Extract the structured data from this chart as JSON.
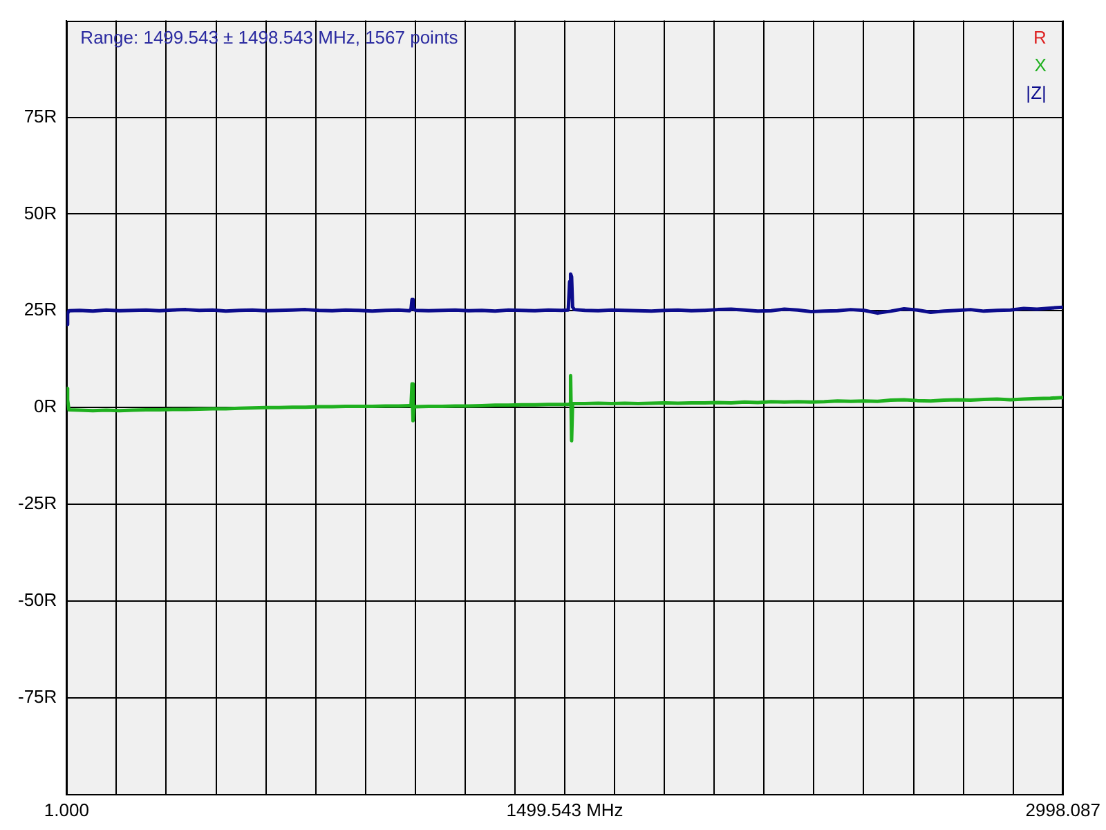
{
  "chart_data": {
    "type": "line",
    "annotations": [
      "Range: 1499.543 ± 1498.543 MHz, 1567 points"
    ],
    "x": [
      1,
      4,
      8,
      40,
      80,
      120,
      160,
      200,
      240,
      280,
      320,
      360,
      400,
      440,
      480,
      520,
      560,
      600,
      640,
      680,
      720,
      760,
      800,
      840,
      880,
      920,
      960,
      1000,
      1032,
      1037,
      1040,
      1043,
      1046,
      1052,
      1090,
      1130,
      1170,
      1210,
      1250,
      1290,
      1330,
      1370,
      1410,
      1450,
      1490,
      1510,
      1514,
      1517,
      1520,
      1523,
      1528,
      1560,
      1600,
      1640,
      1680,
      1720,
      1760,
      1800,
      1840,
      1880,
      1920,
      1960,
      2000,
      2040,
      2080,
      2120,
      2160,
      2200,
      2240,
      2280,
      2320,
      2360,
      2400,
      2440,
      2480,
      2520,
      2560,
      2600,
      2640,
      2680,
      2720,
      2760,
      2800,
      2840,
      2880,
      2920,
      2960,
      2998.087
    ],
    "series": [
      {
        "name": "R",
        "color": "#dd2222",
        "values": [
          null,
          null,
          null,
          null,
          null,
          null,
          null,
          null,
          null,
          null,
          null,
          null,
          null,
          null,
          null,
          null,
          null,
          null,
          null,
          null,
          null,
          null,
          null,
          null,
          null,
          null,
          null,
          null,
          null,
          null,
          null,
          null,
          null,
          null,
          null,
          null,
          null,
          null,
          null,
          null,
          null,
          null,
          null,
          null,
          null,
          null,
          null,
          null,
          null,
          null,
          null,
          null,
          null,
          null,
          null,
          null,
          null,
          null,
          null,
          null,
          null,
          null,
          null,
          null,
          null,
          null,
          null,
          null,
          null,
          null,
          null,
          null,
          null,
          null,
          null,
          null,
          null,
          null,
          null,
          null,
          null,
          null,
          null,
          null,
          null,
          null,
          null,
          null
        ]
      },
      {
        "name": "X",
        "color": "#1fb01f",
        "values": [
          4.9,
          2.0,
          -0.6,
          -0.7,
          -0.8,
          -0.7,
          -0.8,
          -0.7,
          -0.6,
          -0.6,
          -0.5,
          -0.5,
          -0.4,
          -0.3,
          -0.3,
          -0.2,
          -0.1,
          0.0,
          0.0,
          0.1,
          0.1,
          0.2,
          0.2,
          0.3,
          0.3,
          0.3,
          0.4,
          0.4,
          0.5,
          0.4,
          6.1,
          -3.4,
          0.3,
          0.2,
          0.3,
          0.3,
          0.4,
          0.4,
          0.5,
          0.6,
          0.6,
          0.7,
          0.7,
          0.8,
          0.8,
          0.8,
          0.9,
          8.2,
          -8.6,
          1.0,
          1.0,
          1.0,
          1.1,
          1.0,
          1.1,
          1.0,
          1.1,
          1.2,
          1.1,
          1.2,
          1.2,
          1.3,
          1.2,
          1.4,
          1.3,
          1.5,
          1.4,
          1.5,
          1.4,
          1.5,
          1.7,
          1.6,
          1.7,
          1.6,
          1.9,
          2.0,
          1.8,
          1.7,
          1.9,
          2.0,
          1.9,
          2.1,
          2.2,
          2.0,
          2.2,
          2.3,
          2.4,
          2.6
        ]
      },
      {
        "name": "|Z|",
        "color": "#0c0c8c",
        "values": [
          21.5,
          24.3,
          25.0,
          25.1,
          24.9,
          25.2,
          25.0,
          25.1,
          25.2,
          25.0,
          25.2,
          25.3,
          25.1,
          25.2,
          24.9,
          25.1,
          25.2,
          25.0,
          25.1,
          25.2,
          25.3,
          25.1,
          25.0,
          25.2,
          25.1,
          24.9,
          25.1,
          25.2,
          25.0,
          25.4,
          27.9,
          26.2,
          25.3,
          25.1,
          25.0,
          25.1,
          25.2,
          25.0,
          25.1,
          24.9,
          25.2,
          25.1,
          25.0,
          25.2,
          25.1,
          25.2,
          32.5,
          34.5,
          33.8,
          26.0,
          25.3,
          25.1,
          25.0,
          25.2,
          25.1,
          25.0,
          24.9,
          25.1,
          25.2,
          25.0,
          25.1,
          25.3,
          25.4,
          25.2,
          24.9,
          25.0,
          25.4,
          25.2,
          24.8,
          24.9,
          25.0,
          25.3,
          25.1,
          24.4,
          24.9,
          25.5,
          25.2,
          24.6,
          24.9,
          25.1,
          25.3,
          24.9,
          25.1,
          25.2,
          25.6,
          25.4,
          25.7,
          25.9
        ]
      }
    ],
    "xlim": [
      1,
      2998.087
    ],
    "xticks": [
      {
        "value": 1,
        "label": "1.000"
      },
      {
        "value": 150.854,
        "label": null
      },
      {
        "value": 300.709,
        "label": null
      },
      {
        "value": 450.563,
        "label": null
      },
      {
        "value": 600.417,
        "label": null
      },
      {
        "value": 750.272,
        "label": null
      },
      {
        "value": 900.126,
        "label": null
      },
      {
        "value": 1049.98,
        "label": null
      },
      {
        "value": 1199.835,
        "label": null
      },
      {
        "value": 1349.689,
        "label": null
      },
      {
        "value": 1499.543,
        "label": "1499.543 MHz"
      },
      {
        "value": 1649.398,
        "label": null
      },
      {
        "value": 1799.252,
        "label": null
      },
      {
        "value": 1949.107,
        "label": null
      },
      {
        "value": 2098.961,
        "label": null
      },
      {
        "value": 2248.815,
        "label": null
      },
      {
        "value": 2398.67,
        "label": null
      },
      {
        "value": 2548.524,
        "label": null
      },
      {
        "value": 2698.378,
        "label": null
      },
      {
        "value": 2848.233,
        "label": null
      },
      {
        "value": 2998.087,
        "label": "2998.087"
      }
    ],
    "ylim": [
      -100,
      100
    ],
    "yticks": [
      {
        "value": -75,
        "label": "-75R"
      },
      {
        "value": -50,
        "label": "-50R"
      },
      {
        "value": -25,
        "label": "-25R"
      },
      {
        "value": 0,
        "label": "0R"
      },
      {
        "value": 25,
        "label": "25R"
      },
      {
        "value": 50,
        "label": "50R"
      },
      {
        "value": 75,
        "label": "75R"
      }
    ],
    "grid": true,
    "legend": "top right"
  }
}
